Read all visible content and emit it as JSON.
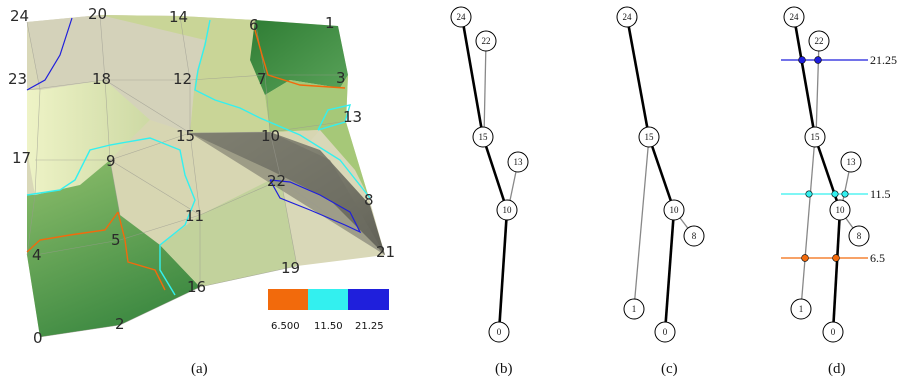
{
  "captions": [
    "(a)",
    "(b)",
    "(c)",
    "(d)"
  ],
  "colors": {
    "orange": "#f26a0c",
    "cyan": "#33f0ef",
    "blue": "#1f1fdc",
    "dark_green": "#3f8f3f",
    "light_green": "#e9f0c8"
  },
  "surface": {
    "vertex_labels": [
      "24",
      "20",
      "14",
      "6",
      "1",
      "23",
      "18",
      "12",
      "7",
      "3",
      "13",
      "17",
      "9",
      "15",
      "10",
      "22",
      "8",
      "4",
      "5",
      "11",
      "19",
      "21",
      "16",
      "0",
      "2"
    ]
  },
  "legend": {
    "labels": [
      "6.500",
      "11.50",
      "21.25"
    ]
  },
  "trees": {
    "b": {
      "nodes": [
        "24",
        "22",
        "15",
        "13",
        "10",
        "0"
      ]
    },
    "c": {
      "nodes": [
        "24",
        "15",
        "10",
        "8",
        "1",
        "0"
      ]
    },
    "d": {
      "nodes": [
        "24",
        "22",
        "15",
        "13",
        "10",
        "8",
        "1",
        "0"
      ],
      "levels": [
        "21.25",
        "11.5",
        "6.5"
      ]
    }
  }
}
